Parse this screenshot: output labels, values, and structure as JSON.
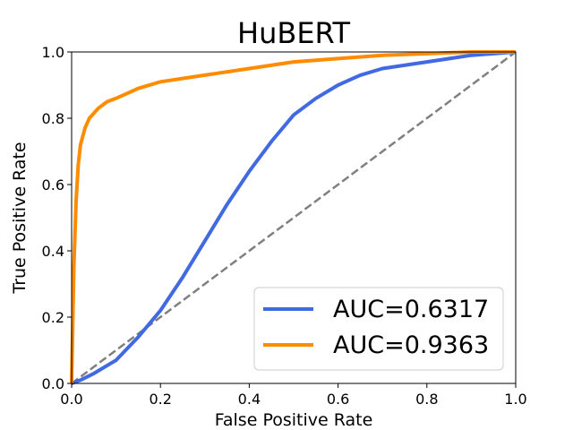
{
  "chart_data": {
    "type": "line",
    "title": "HuBERT",
    "xlabel": "False Positive Rate",
    "ylabel": "True Positive Rate",
    "xlim": [
      0.0,
      1.0
    ],
    "ylim": [
      0.0,
      1.0
    ],
    "xticks": [
      "0.0",
      "0.2",
      "0.4",
      "0.6",
      "0.8",
      "1.0"
    ],
    "yticks": [
      "0.0",
      "0.2",
      "0.4",
      "0.6",
      "0.8",
      "1.0"
    ],
    "grid": false,
    "legend_position": "lower-right",
    "series": [
      {
        "name": "AUC=0.6317",
        "color": "#4169E1",
        "x": [
          0.0,
          0.02,
          0.05,
          0.1,
          0.15,
          0.2,
          0.25,
          0.3,
          0.35,
          0.4,
          0.45,
          0.5,
          0.55,
          0.6,
          0.65,
          0.7,
          0.8,
          0.9,
          1.0
        ],
        "y": [
          0.0,
          0.01,
          0.03,
          0.07,
          0.14,
          0.22,
          0.32,
          0.43,
          0.54,
          0.64,
          0.73,
          0.81,
          0.86,
          0.9,
          0.93,
          0.95,
          0.97,
          0.99,
          1.0
        ]
      },
      {
        "name": "AUC=0.9363",
        "color": "#FF8C00",
        "x": [
          0.0,
          0.005,
          0.01,
          0.015,
          0.02,
          0.03,
          0.04,
          0.06,
          0.08,
          0.1,
          0.15,
          0.2,
          0.3,
          0.4,
          0.5,
          0.6,
          0.7,
          0.8,
          0.9,
          1.0
        ],
        "y": [
          0.0,
          0.35,
          0.55,
          0.66,
          0.72,
          0.77,
          0.8,
          0.83,
          0.85,
          0.86,
          0.89,
          0.91,
          0.93,
          0.95,
          0.97,
          0.98,
          0.99,
          0.995,
          1.0,
          1.0
        ]
      },
      {
        "name": "",
        "color": "#808080",
        "style": "dashed",
        "x": [
          0.0,
          1.0
        ],
        "y": [
          0.0,
          1.0
        ]
      }
    ]
  }
}
